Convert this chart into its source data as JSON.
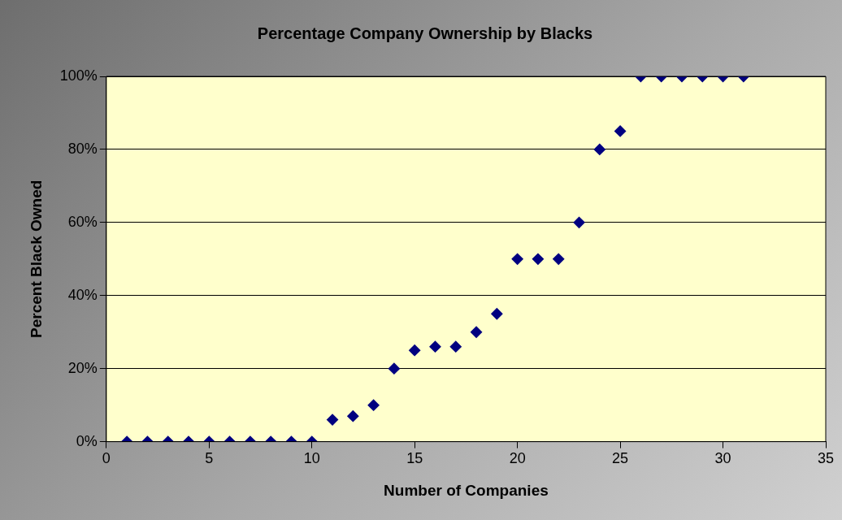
{
  "chart_data": {
    "type": "scatter",
    "title": "Percentage Company Ownership by Blacks",
    "xlabel": "Number of Companies",
    "ylabel": "Percent Black Owned",
    "x": [
      1,
      2,
      3,
      4,
      5,
      6,
      7,
      8,
      9,
      10,
      11,
      12,
      13,
      14,
      15,
      16,
      17,
      18,
      19,
      20,
      21,
      22,
      23,
      24,
      25,
      26,
      27,
      28,
      29,
      30,
      31
    ],
    "series": [
      {
        "color": "#000080",
        "values": [
          0,
          0,
          0,
          0,
          0,
          0,
          0,
          0,
          0,
          0,
          6,
          7,
          10,
          20,
          25,
          26,
          26,
          30,
          35,
          50,
          50,
          50,
          60,
          80,
          85,
          100,
          100,
          100,
          100,
          100,
          100
        ]
      }
    ],
    "xlim": [
      0,
      35
    ],
    "xticks": [
      0,
      5,
      10,
      15,
      20,
      25,
      30,
      35
    ],
    "ylim": [
      0,
      100
    ],
    "yticks": [
      {
        "value": 0,
        "label": "0%"
      },
      {
        "value": 20,
        "label": "20%"
      },
      {
        "value": 40,
        "label": "40%"
      },
      {
        "value": 60,
        "label": "60%"
      },
      {
        "value": 80,
        "label": "80%"
      },
      {
        "value": 100,
        "label": "100%"
      }
    ],
    "grid": "y",
    "marker": "diamond",
    "legend": false
  }
}
